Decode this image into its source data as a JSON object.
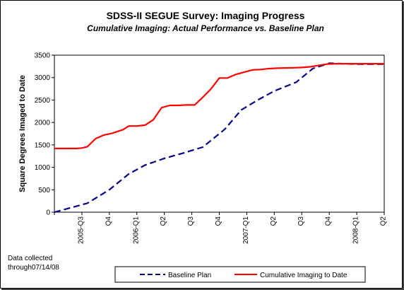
{
  "chart_data": {
    "type": "line",
    "title": "SDSS-II SEGUE Survey:  Imaging Progress",
    "subtitle": "Cumulative Imaging: Actual Performance vs. Baseline Plan",
    "ylabel": "Square Degrees Imaged to Date",
    "xlabel": "",
    "ylim": [
      0,
      3500
    ],
    "y_ticks": [
      0,
      500,
      1000,
      1500,
      2000,
      2500,
      3000,
      3500
    ],
    "grid": false,
    "legend_position": "bottom",
    "x_categories": [
      "2005-Q3",
      "Q4",
      "2006-Q1",
      "Q2",
      "Q3",
      "Q4",
      "2007-Q1",
      "Q2",
      "Q3",
      "Q4",
      "2008-Q1",
      "Q2"
    ],
    "x_range": [
      0,
      12
    ],
    "series": [
      {
        "name": "Baseline Plan",
        "color": "#000080",
        "style": "dashed",
        "x": [
          0,
          0.6,
          1.2,
          2.0,
          2.7,
          3.3,
          4.0,
          4.7,
          5.4,
          6.2,
          6.8,
          7.4,
          8.0,
          8.8,
          9.4,
          10.0,
          10.5,
          11.0,
          12.0
        ],
        "y": [
          0,
          100,
          200,
          500,
          850,
          1050,
          1200,
          1320,
          1450,
          1850,
          2280,
          2500,
          2700,
          2900,
          3200,
          3320,
          3310,
          3300,
          3300
        ]
      },
      {
        "name": "Cumulative Imaging to Date",
        "color": "#ff0000",
        "style": "solid",
        "x": [
          0,
          0.4,
          0.8,
          1.0,
          1.2,
          1.5,
          1.8,
          2.1,
          2.5,
          2.7,
          3.0,
          3.3,
          3.6,
          3.9,
          4.2,
          4.5,
          4.8,
          5.1,
          5.4,
          5.7,
          6.0,
          6.3,
          6.6,
          6.9,
          7.2,
          7.5,
          7.8,
          8.1,
          8.4,
          8.7,
          9.0,
          9.3,
          9.6,
          9.9,
          10.2,
          10.5,
          10.8,
          11.1,
          11.4,
          11.7,
          12.0
        ],
        "y": [
          1420,
          1420,
          1420,
          1430,
          1460,
          1640,
          1720,
          1760,
          1840,
          1920,
          1920,
          1940,
          2060,
          2330,
          2380,
          2380,
          2390,
          2390,
          2560,
          2750,
          2990,
          2990,
          3070,
          3120,
          3170,
          3180,
          3200,
          3210,
          3215,
          3220,
          3225,
          3240,
          3270,
          3300,
          3310,
          3310,
          3310,
          3310,
          3310,
          3310,
          3310
        ]
      }
    ]
  },
  "notes": {
    "line1": "Data collected",
    "line2": "through07/14/08"
  },
  "legend": {
    "baseline_label": "Baseline Plan",
    "actual_label": "Cumulative Imaging to Date"
  }
}
